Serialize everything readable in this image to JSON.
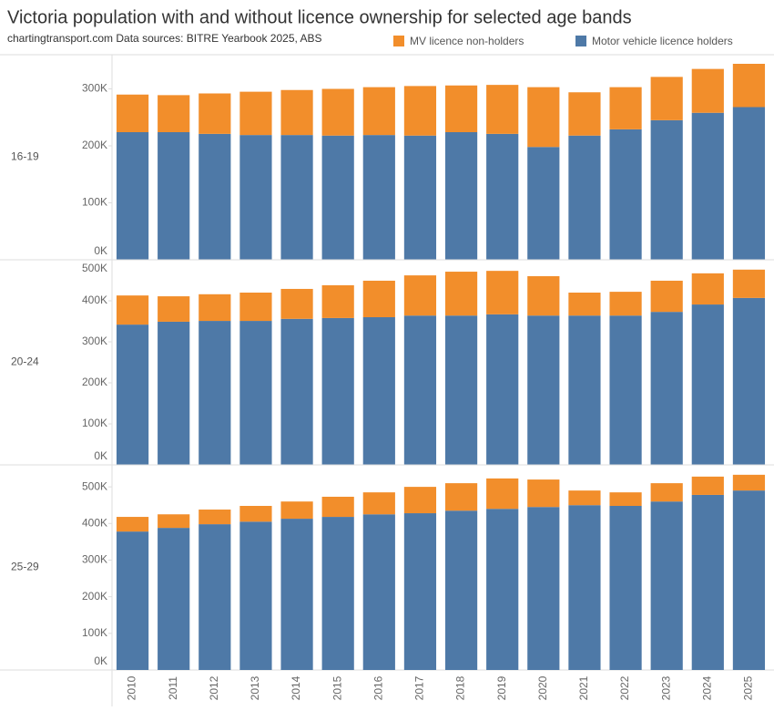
{
  "title": "Victoria population with and without licence ownership for selected age bands",
  "subtitle": "chartingtransport.com  Data sources: BITRE Yearbook 2025, ABS",
  "chart_data": {
    "type": "bar",
    "stacked": true,
    "grid": false,
    "categories": [
      "2010",
      "2011",
      "2012",
      "2013",
      "2014",
      "2015",
      "2016",
      "2017",
      "2018",
      "2019",
      "2020",
      "2021",
      "2022",
      "2023",
      "2024",
      "2025"
    ],
    "series": [
      {
        "name": "Motor vehicle licence holders",
        "color": "#4e79a7"
      },
      {
        "name": "MV licence non-holders",
        "color": "#f28e2b"
      }
    ],
    "panels": [
      {
        "label": "16-19",
        "ylim": [
          0,
          360000
        ],
        "yticks": [
          {
            "value": 0,
            "label": "0K"
          },
          {
            "value": 100000,
            "label": "100K"
          },
          {
            "value": 200000,
            "label": "200K"
          },
          {
            "value": 300000,
            "label": "300K"
          }
        ],
        "values": [
          [
            224000,
            224000,
            221000,
            219000,
            219000,
            218000,
            219000,
            218000,
            224000,
            221000,
            198000,
            218000,
            229000,
            245000,
            258000,
            268000
          ],
          [
            66000,
            65000,
            71000,
            76000,
            79000,
            82000,
            84000,
            87000,
            82000,
            86000,
            105000,
            76000,
            74000,
            76000,
            77000,
            76000
          ]
        ]
      },
      {
        "label": "20-24",
        "ylim": [
          0,
          500000
        ],
        "yticks": [
          {
            "value": 0,
            "label": "0K"
          },
          {
            "value": 100000,
            "label": "100K"
          },
          {
            "value": 200000,
            "label": "200K"
          },
          {
            "value": 300000,
            "label": "300K"
          },
          {
            "value": 400000,
            "label": "400K"
          },
          {
            "value": 500000,
            "label": "500K"
          }
        ],
        "values": [
          [
            342000,
            349000,
            351000,
            351000,
            356000,
            358000,
            360000,
            364000,
            364000,
            367000,
            364000,
            364000,
            364000,
            373000,
            391000,
            407000
          ],
          [
            71000,
            62000,
            65000,
            69000,
            73000,
            80000,
            89000,
            98000,
            107000,
            106000,
            96000,
            56000,
            58000,
            76000,
            76000,
            69000
          ]
        ]
      },
      {
        "label": "25-29",
        "ylim": [
          0,
          560000
        ],
        "yticks": [
          {
            "value": 0,
            "label": "0K"
          },
          {
            "value": 100000,
            "label": "100K"
          },
          {
            "value": 200000,
            "label": "200K"
          },
          {
            "value": 300000,
            "label": "300K"
          },
          {
            "value": 400000,
            "label": "400K"
          },
          {
            "value": 500000,
            "label": "500K"
          }
        ],
        "values": [
          [
            378000,
            388000,
            398000,
            405000,
            413000,
            418000,
            425000,
            428000,
            435000,
            440000,
            445000,
            450000,
            448000,
            460000,
            478000,
            490000
          ],
          [
            40000,
            37000,
            40000,
            43000,
            47000,
            55000,
            60000,
            72000,
            75000,
            83000,
            75000,
            40000,
            37000,
            50000,
            50000,
            43000
          ]
        ]
      }
    ]
  }
}
